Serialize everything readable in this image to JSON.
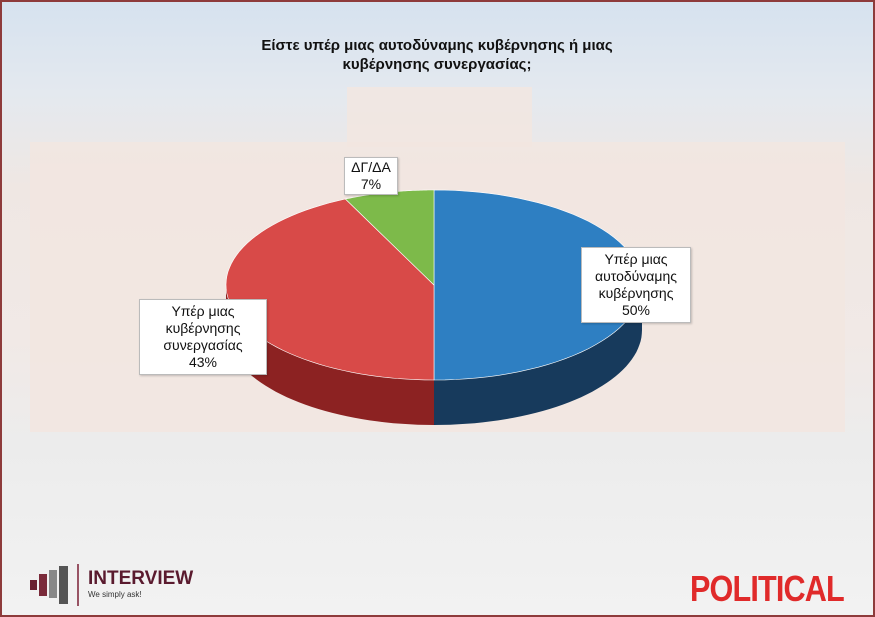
{
  "chart_data": {
    "type": "pie",
    "title": "Είστε υπέρ μιας αυτοδύναμης κυβέρνησης ή μιας κυβέρνησης συνεργασίας;",
    "title_lines": [
      "Είστε υπέρ μιας αυτοδύναμης κυβέρνησης ή μιας",
      "κυβέρνησης συνεργασίας;"
    ],
    "slices": [
      {
        "label": "Υπέρ μιας αυτοδύναμης κυβέρνησης",
        "label_lines": [
          "Υπέρ μιας",
          "αυτοδύναμης",
          "κυβέρνησης"
        ],
        "value": 50,
        "value_label": "50%",
        "color": "#2e7fc2",
        "side_color": "#173a5c"
      },
      {
        "label": "Υπέρ μιας κυβέρνησης συνεργασίας",
        "label_lines": [
          "Υπέρ μιας",
          "κυβέρνησης",
          "συνεργασίας"
        ],
        "value": 43,
        "value_label": "43%",
        "color": "#d84a48",
        "side_color": "#8c2222"
      },
      {
        "label": "ΔΓ/ΔΑ",
        "label_lines": [
          "ΔΓ/ΔΑ"
        ],
        "value": 7,
        "value_label": "7%",
        "color": "#7dba4a",
        "side_color": "#4c7a2a"
      }
    ],
    "style": "3d"
  },
  "footer": {
    "left_brand": "INTERVIEW",
    "left_tagline": "We simply ask!",
    "right_brand": "POLITICAL"
  }
}
